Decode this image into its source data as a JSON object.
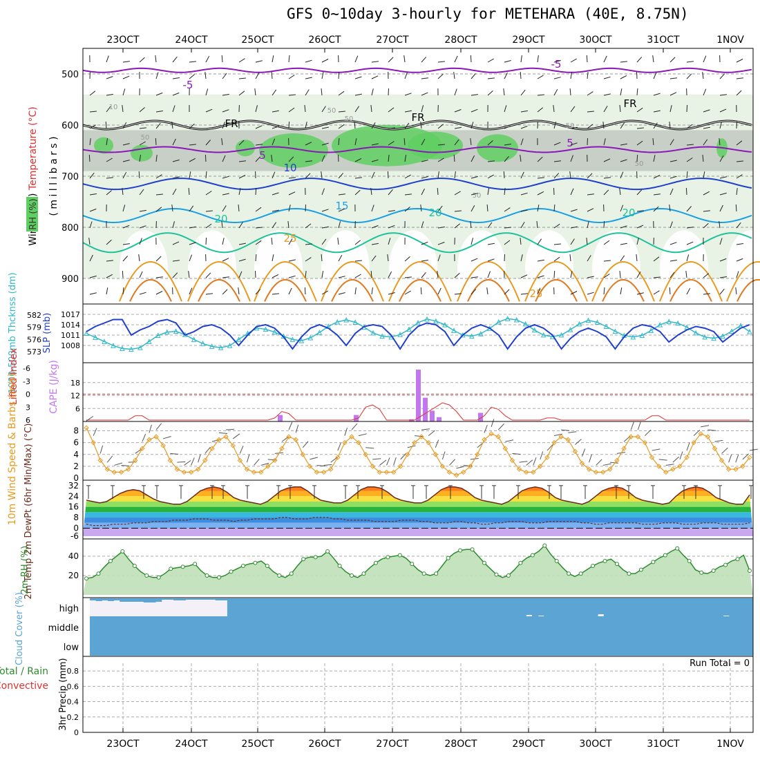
{
  "title": "GFS 0~10day 3-hourly for METEHARA (40E, 8.75N)",
  "colors": {
    "purple": "#8b17b8",
    "blue": "#1f3fcc",
    "skyblue": "#1a9ee6",
    "teal": "#1ec29a",
    "orange": "#e89a20",
    "darkorange": "#e07a20",
    "green_rh": "#3ea83e",
    "cyan": "#32b8c8",
    "cloud": "#5ba4d4",
    "red": "#e03030"
  },
  "chart_data": {
    "type": "meteogram",
    "dates": [
      "23OCT",
      "24OCT",
      "25OCT",
      "26OCT",
      "27OCT",
      "28OCT",
      "29OCT",
      "30OCT",
      "31OCT",
      "1NOV"
    ],
    "panels": [
      {
        "id": "upper_air",
        "ylabel_parts": [
          "Wind (m/s)",
          "Temperature (°C)",
          "RH (%)"
        ],
        "ylabel_inner": "( m i l l i b a r s )",
        "y_ticks": [
          500,
          600,
          700,
          800,
          900
        ],
        "ylim": [
          450,
          950
        ],
        "contour_labels": [
          "-5",
          "5",
          "-5",
          "5",
          "10",
          "15",
          "20",
          "20",
          "20",
          "25",
          "25",
          "FR",
          "FR",
          "FR",
          "10",
          "50",
          "50",
          "50",
          "50",
          "50",
          "50"
        ],
        "isotherms": {
          "minus5": 493,
          "plus5": 648,
          "ten": 715,
          "fifteen": 777,
          "twenty": 830,
          "freezing": 600
        }
      },
      {
        "id": "slp_thickness",
        "ylabel_left": "1000-500mb Thcknss (dm)",
        "ylabel_right": "SLP (mb)",
        "thickness_ticks": [
          "582",
          "579",
          "576",
          "573"
        ],
        "slp_ticks": [
          "1017",
          "1014",
          "1011",
          "1008"
        ],
        "slp_series": [
          1012,
          1013.5,
          1014.5,
          1015.5,
          1015.5,
          1011,
          1012.5,
          1013.5,
          1015,
          1015.5,
          1014.5,
          1011,
          1012,
          1013.5,
          1014,
          1013,
          1011,
          1008,
          1011,
          1013.5,
          1014,
          1013,
          1010.5,
          1007,
          1010.5,
          1013,
          1014,
          1013,
          1011,
          1008,
          1011.5,
          1013.5,
          1014,
          1013.5,
          1011,
          1007,
          1011,
          1013.5,
          1014.5,
          1014,
          1012,
          1008,
          1011,
          1013,
          1014,
          1013,
          1011,
          1007,
          1010.5,
          1013,
          1014,
          1013,
          1011,
          1007,
          1010,
          1012,
          1013,
          1012,
          1010.5,
          1007,
          1010.5,
          1013,
          1014,
          1013.5,
          1012,
          1009,
          1011,
          1012.5,
          1013.5,
          1013,
          1012,
          1009,
          1011,
          1013,
          1014
        ],
        "thickness_series": [
          577.5,
          576.5,
          575.5,
          574.5,
          573.8,
          573.6,
          574,
          575.5,
          577,
          577.8,
          578,
          577.2,
          576,
          575,
          574.3,
          574,
          574.5,
          576,
          577.5,
          578.8,
          578.5,
          577.8,
          576.8,
          576,
          575.7,
          576.4,
          577.7,
          579.2,
          580.3,
          580.8,
          580.2,
          579,
          577.6,
          576.8,
          576.6,
          577.2,
          578.5,
          580.1,
          581,
          580.5,
          579.6,
          578.2,
          577.1,
          576.8,
          577.4,
          578.7,
          580.3,
          581.1,
          580.8,
          579.8,
          578.3,
          577.1,
          576.7,
          577.1,
          578.4,
          579.8,
          580.7,
          580.2,
          579.2,
          578,
          577,
          576.6,
          577,
          578.2,
          579.6,
          580.4,
          580,
          579,
          577.6,
          576.6,
          576.3,
          576.8,
          578,
          579.4,
          577.9
        ]
      },
      {
        "id": "cape_li",
        "ylabel_left": "Lifted Index",
        "ylabel_right": "CAPE (J/kg)",
        "li_ticks": [
          "-6",
          "-3",
          "0",
          "3",
          "6"
        ],
        "cape_ticks": [
          "18",
          "12",
          "6"
        ],
        "cape_bars": [
          {
            "i": 28,
            "v": 3
          },
          {
            "i": 39,
            "v": 3
          },
          {
            "i": 47,
            "v": 1
          },
          {
            "i": 48,
            "v": 24
          },
          {
            "i": 49,
            "v": 11
          },
          {
            "i": 50,
            "v": 5
          },
          {
            "i": 51,
            "v": 2
          },
          {
            "i": 57,
            "v": 4
          }
        ],
        "li_series": [
          6,
          6,
          6,
          6,
          6,
          6,
          6,
          5,
          5,
          6,
          6,
          6,
          6,
          6,
          6,
          6,
          6,
          6,
          6,
          6,
          6,
          6,
          6,
          6,
          6,
          6,
          6,
          5.5,
          4,
          4.5,
          6,
          6,
          6,
          6,
          6,
          6,
          6,
          6,
          6,
          5.5,
          3,
          2.5,
          3.5,
          6,
          6,
          6,
          6,
          6,
          5,
          4,
          3,
          2,
          2.5,
          4,
          6,
          6,
          6,
          5,
          3,
          3.5,
          5,
          6,
          6,
          6,
          6,
          6,
          5.5,
          5.5,
          6,
          6,
          6,
          6,
          6,
          6,
          6,
          6,
          6,
          6,
          6,
          6,
          6,
          5,
          5,
          6,
          6,
          6,
          6,
          6,
          6,
          6,
          6,
          6,
          6,
          6,
          6,
          6
        ]
      },
      {
        "id": "wind10m",
        "ylabel": "10m Wind Speed & Barbs (m/s)",
        "y_ticks": [
          "8",
          "6",
          "4",
          "2",
          "0"
        ],
        "speed_series": [
          8.5,
          6,
          3,
          1.5,
          1,
          1,
          1.5,
          3,
          5,
          6.5,
          7,
          5.5,
          3,
          1.5,
          1,
          1,
          1.5,
          3,
          5,
          6.5,
          7,
          5.5,
          3,
          1.5,
          1,
          1,
          2,
          3,
          5,
          7,
          6.5,
          4,
          2,
          1,
          1,
          1.5,
          3.5,
          6,
          7,
          6,
          4,
          2,
          1,
          1,
          1,
          2,
          4,
          6,
          7,
          6,
          4,
          2,
          1,
          0.5,
          1,
          2,
          4,
          6.5,
          7.5,
          7,
          5,
          3,
          1.5,
          1,
          1,
          2,
          3.5,
          6,
          7,
          6.5,
          4.5,
          2.5,
          1.5,
          1,
          1,
          1.5,
          3,
          5,
          7,
          7,
          6,
          3.5,
          2,
          1,
          1.5,
          2,
          3.5,
          6,
          7.5,
          7,
          5,
          3,
          1.5,
          1.5,
          2,
          3.5
        ]
      },
      {
        "id": "temp2m",
        "ylabel": "2m Temp 2m DewPt (6hr Min/Max) (°C)",
        "y_ticks": [
          "32",
          "24",
          "16",
          "8",
          "0",
          "-6"
        ],
        "temp_series": [
          21,
          20,
          19,
          20,
          23,
          26,
          28,
          29,
          28,
          25,
          22,
          20,
          19,
          18,
          18,
          20,
          24,
          28,
          30,
          31,
          30,
          27,
          23,
          21,
          20,
          19,
          18,
          20,
          24,
          28,
          30,
          31,
          31,
          28,
          24,
          21,
          20,
          19,
          19,
          21,
          25,
          29,
          31,
          31,
          30,
          27,
          23,
          21,
          20,
          19,
          19,
          21,
          25,
          29,
          31,
          31,
          30,
          27,
          23,
          21,
          20,
          19,
          18,
          20,
          24,
          28,
          30,
          31,
          30,
          27,
          23,
          21,
          20,
          19,
          18,
          20,
          24,
          28,
          30,
          31,
          30,
          27,
          23,
          21,
          20,
          19,
          18,
          19,
          24,
          28,
          30,
          31,
          30,
          27,
          23,
          21,
          19,
          18,
          18,
          25
        ],
        "dew_series": [
          3,
          2,
          2,
          2,
          3,
          3,
          3,
          4,
          4,
          4,
          5,
          5,
          5,
          6,
          6,
          6,
          7,
          7,
          7,
          6,
          6,
          6,
          5,
          6,
          6,
          7,
          7,
          7,
          7,
          8,
          8,
          7,
          7,
          7,
          8,
          8,
          8,
          7,
          7,
          6,
          6,
          6,
          6,
          5,
          5,
          5,
          5,
          6,
          6,
          6,
          5,
          5,
          4,
          4,
          4,
          5,
          5,
          4,
          4,
          3,
          3,
          4,
          4,
          5,
          5,
          5,
          4,
          4,
          4,
          5,
          5,
          5,
          5,
          5,
          4,
          4,
          3,
          3,
          4,
          4,
          4,
          4,
          4,
          3,
          3,
          3,
          4,
          4,
          4,
          3,
          3,
          3,
          4,
          4,
          4,
          3,
          3,
          3,
          3,
          4
        ]
      },
      {
        "id": "rh2m",
        "ylabel": "2m RH (%)",
        "y_ticks": [
          "40",
          "20"
        ],
        "rh_series": [
          17,
          18,
          22,
          29,
          35,
          40,
          45,
          37,
          30,
          24,
          20,
          18,
          18,
          22,
          27,
          28,
          29,
          30,
          32,
          25,
          20,
          18,
          18,
          20,
          24,
          27,
          30,
          32,
          33,
          35,
          30,
          24,
          20,
          18,
          22,
          30,
          37,
          39,
          39,
          40,
          45,
          38,
          30,
          24,
          20,
          18,
          22,
          28,
          33,
          37,
          39,
          40,
          41,
          38,
          32,
          26,
          22,
          20,
          22,
          30,
          38,
          43,
          46,
          47,
          47,
          40,
          33,
          27,
          21,
          18,
          20,
          26,
          33,
          38,
          41,
          45,
          51,
          42,
          35,
          28,
          22,
          19,
          22,
          26,
          30,
          33,
          35,
          37,
          32,
          26,
          22,
          22,
          26,
          30,
          34,
          38,
          41,
          45,
          48,
          41,
          35,
          26,
          23,
          22,
          25,
          29,
          31,
          35,
          37,
          41,
          25
        ]
      },
      {
        "id": "cloud",
        "ylabel": "Cloud Cover (%)",
        "levels": [
          "high",
          "middle",
          "low"
        ],
        "high_series": [
          3,
          4,
          3,
          4,
          3,
          5,
          5,
          5,
          5,
          6,
          6,
          5,
          2,
          2,
          3,
          3,
          2,
          2,
          2,
          2,
          2,
          3,
          3,
          30,
          30,
          30,
          30,
          30,
          28,
          30,
          30,
          28,
          30,
          30,
          30,
          28,
          30,
          30,
          29,
          30,
          30,
          29,
          30,
          30,
          30,
          29,
          30,
          30,
          29,
          30,
          30,
          30,
          30,
          30,
          29,
          30,
          30,
          30,
          30,
          28,
          30,
          30,
          30,
          30,
          30,
          29,
          30,
          30,
          30,
          28,
          30,
          30,
          30,
          24,
          30,
          25,
          30,
          30,
          30,
          30,
          30,
          28,
          30,
          30,
          30,
          23,
          28,
          30,
          30,
          27,
          30,
          30,
          30,
          28,
          30,
          30,
          30,
          28,
          30,
          26,
          30,
          30,
          29,
          30,
          30,
          30,
          25,
          30,
          30,
          28,
          30
        ]
      },
      {
        "id": "precip",
        "ylabel": "3hr Precip (mm)",
        "ylabel_left": "Total / Rain",
        "ylabel_left2": "Convective",
        "y_ticks": [
          "0.8",
          "0.6",
          "0.4",
          "0.2",
          "0"
        ],
        "run_total_text": "Run Total = 0"
      }
    ]
  }
}
